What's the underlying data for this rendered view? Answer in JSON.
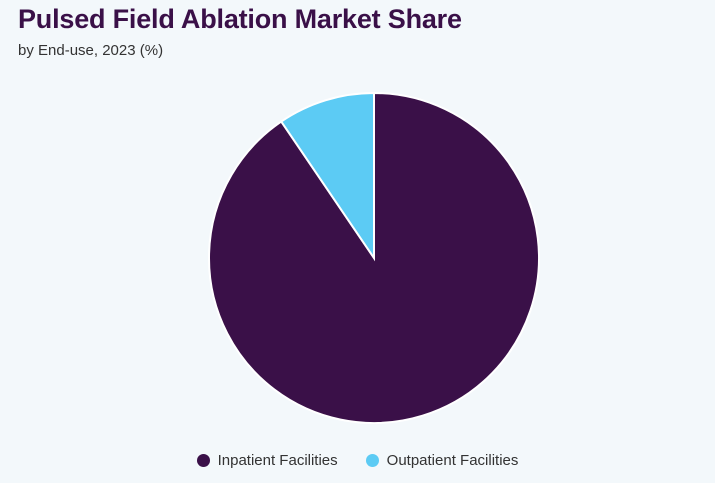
{
  "chart_data": {
    "type": "pie",
    "title": "Pulsed Field Ablation Market Share",
    "subtitle": "by End-use, 2023 (%)",
    "slices": [
      {
        "label": "Inpatient Facilities",
        "value": 90.5,
        "color": "#3a1048"
      },
      {
        "label": "Outpatient Facilities",
        "value": 9.5,
        "color": "#5ccbf4"
      }
    ],
    "legend_position": "bottom"
  }
}
